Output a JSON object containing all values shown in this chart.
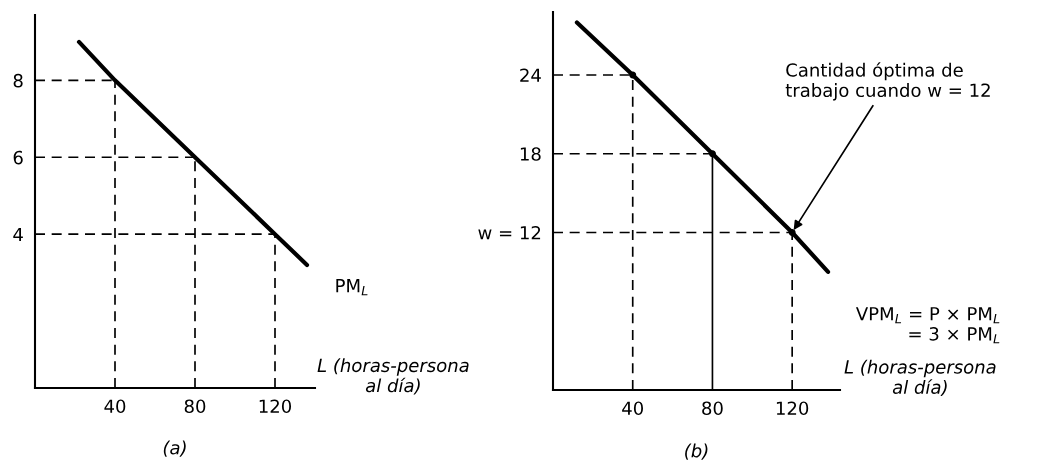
{
  "chart_data": [
    {
      "type": "line",
      "title": "(a)",
      "xlabel": "L (horas-persona\nal día)",
      "xlim": [
        0,
        140
      ],
      "ylim": [
        0,
        9.7
      ],
      "xticks": [
        40,
        80,
        120
      ],
      "yticks": [
        4,
        6,
        8
      ],
      "grid": false,
      "series": [
        {
          "color": "#000000",
          "x": [
            22,
            40,
            80,
            120,
            136
          ],
          "values": [
            9,
            8,
            6,
            4,
            3.2
          ]
        }
      ],
      "ref_lines": [
        {
          "axis": "x",
          "value": 40,
          "line_style": "dashed"
        },
        {
          "axis": "x",
          "value": 80,
          "line_style": "dashed"
        },
        {
          "axis": "x",
          "value": 120,
          "line_style": "dashed"
        },
        {
          "axis": "y",
          "value": 8,
          "line_style": "dashed"
        },
        {
          "axis": "y",
          "value": 6,
          "line_style": "dashed"
        },
        {
          "axis": "y",
          "value": 4,
          "line_style": "dashed"
        }
      ],
      "annotations": [
        "PM$_{L}$"
      ]
    },
    {
      "type": "line",
      "title": "(b)",
      "xlabel": "L (horas-persona\nal día)",
      "xlim": [
        0,
        144
      ],
      "ylim": [
        0,
        28.8
      ],
      "xticks": [
        40,
        80,
        120
      ],
      "yticks": [
        {
          "value": 12,
          "label": "w = 12"
        },
        18,
        24
      ],
      "grid": false,
      "series": [
        {
          "color": "#000000",
          "x": [
            12,
            40,
            80,
            120,
            138
          ],
          "values": [
            28,
            24,
            18,
            12,
            9
          ]
        },
        {
          "type": "scatter",
          "color": "#000000",
          "x": [
            40,
            80,
            120
          ],
          "values": [
            24,
            18,
            12
          ]
        }
      ],
      "ref_lines": [
        {
          "axis": "x",
          "value": 40,
          "line_style": "dashed"
        },
        {
          "axis": "x",
          "value": 80,
          "line_style": "solid"
        },
        {
          "axis": "x",
          "value": 120,
          "line_style": "dashed"
        },
        {
          "axis": "y",
          "value": 24,
          "line_style": "dashed"
        },
        {
          "axis": "y",
          "value": 18,
          "line_style": "dashed"
        },
        {
          "axis": "y",
          "value": 12,
          "line_style": "dashed"
        }
      ],
      "annotations": [
        {
          "text": "Cantidad óptima de\ntrabajo cuando w = 12",
          "x": 120,
          "y": 12
        },
        {
          "text": "VPM$_{L}$ = P × PM$_{L}$\n= 3 × PM$_{L}$",
          "x": 138,
          "y": 9
        }
      ]
    }
  ]
}
